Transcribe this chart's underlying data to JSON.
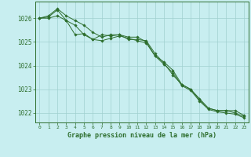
{
  "title": "Graphe pression niveau de la mer (hPa)",
  "bg_color": "#c8eef0",
  "grid_color": "#a0d0d0",
  "line_color": "#2d6e2d",
  "marker_color": "#2d6e2d",
  "xlim": [
    -0.5,
    23.5
  ],
  "ylim": [
    1021.6,
    1026.7
  ],
  "yticks": [
    1022,
    1023,
    1024,
    1025,
    1026
  ],
  "xtick_labels": [
    "0",
    "1",
    "2",
    "3",
    "4",
    "5",
    "6",
    "7",
    "8",
    "9",
    "10",
    "11",
    "12",
    "13",
    "14",
    "15",
    "16",
    "17",
    "18",
    "19",
    "20",
    "21",
    "22",
    "23"
  ],
  "series": [
    [
      1026.0,
      1026.1,
      1026.4,
      1026.1,
      1025.9,
      1025.7,
      1025.4,
      1025.2,
      1025.3,
      1025.3,
      1025.1,
      1025.1,
      1025.05,
      1024.5,
      1024.1,
      1023.6,
      1023.2,
      1023.0,
      1022.6,
      1022.2,
      1022.1,
      1022.1,
      1022.1,
      1021.9
    ],
    [
      1026.0,
      1026.0,
      1026.1,
      1025.9,
      1025.7,
      1025.3,
      1025.1,
      1025.3,
      1025.25,
      1025.3,
      1025.2,
      1025.2,
      1025.0,
      1024.4,
      1024.15,
      1023.8,
      1023.2,
      1023.0,
      1022.55,
      1022.2,
      1022.1,
      1022.1,
      1022.0,
      1021.85
    ],
    [
      1026.0,
      1026.05,
      1026.35,
      1025.9,
      1025.3,
      1025.35,
      1025.1,
      1025.05,
      1025.15,
      1025.25,
      1025.15,
      1025.05,
      1024.95,
      1024.4,
      1024.05,
      1023.7,
      1023.15,
      1022.95,
      1022.5,
      1022.15,
      1022.05,
      1022.0,
      1021.95,
      1021.8
    ]
  ]
}
